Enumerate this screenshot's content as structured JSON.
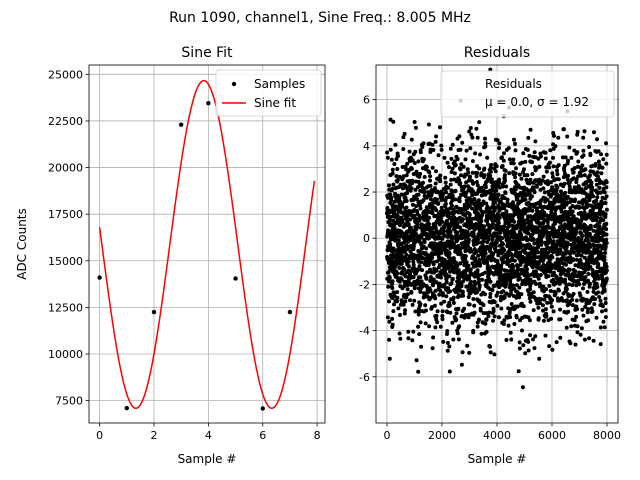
{
  "suptitle": "Run 1090, channel1, Sine Freq.: 8.005 MHz",
  "chart_data": [
    {
      "type": "scatter",
      "title": "Sine Fit",
      "xlabel": "Sample #",
      "ylabel": "ADC Counts",
      "xlim": [
        -0.39,
        8.29
      ],
      "ylim": [
        6300,
        25500
      ],
      "xticks": [
        0,
        2,
        4,
        6,
        8
      ],
      "yticks": [
        7500,
        10000,
        12500,
        15000,
        17500,
        20000,
        22500,
        25000
      ],
      "grid": true,
      "legend_position": "top-right",
      "samples": {
        "name": "Samples",
        "color": "#000000",
        "x": [
          0,
          1,
          2,
          3,
          4,
          5,
          6,
          7
        ],
        "y": [
          14100,
          7100,
          12250,
          22300,
          23450,
          14050,
          7080,
          12250
        ]
      },
      "fit": {
        "name": "Sine fit",
        "color": "#ff0000",
        "model": "offset + amplitude * sin(2*pi*x/period + phase)",
        "offset": 15875,
        "amplitude": 8785,
        "period": 5.0,
        "phase": 3.0373,
        "x_range": [
          0,
          7.9
        ]
      }
    },
    {
      "type": "scatter",
      "title": "Residuals",
      "xlabel": "Sample #",
      "ylabel": "",
      "xlim": [
        -400,
        8400
      ],
      "ylim": [
        -8.0,
        7.5
      ],
      "xticks": [
        0,
        2000,
        4000,
        6000,
        8000
      ],
      "yticks": [
        -6,
        -4,
        -2,
        0,
        2,
        4,
        6
      ],
      "grid": true,
      "legend_position": "top-right",
      "series": {
        "name": "Residuals",
        "color": "#000000",
        "n_points": 8000,
        "x_range": [
          0,
          8000
        ],
        "mean": 0.0,
        "sigma": 1.92,
        "clip": 7.3
      },
      "legend_stats": "μ = 0.0, σ = 1.92"
    }
  ]
}
